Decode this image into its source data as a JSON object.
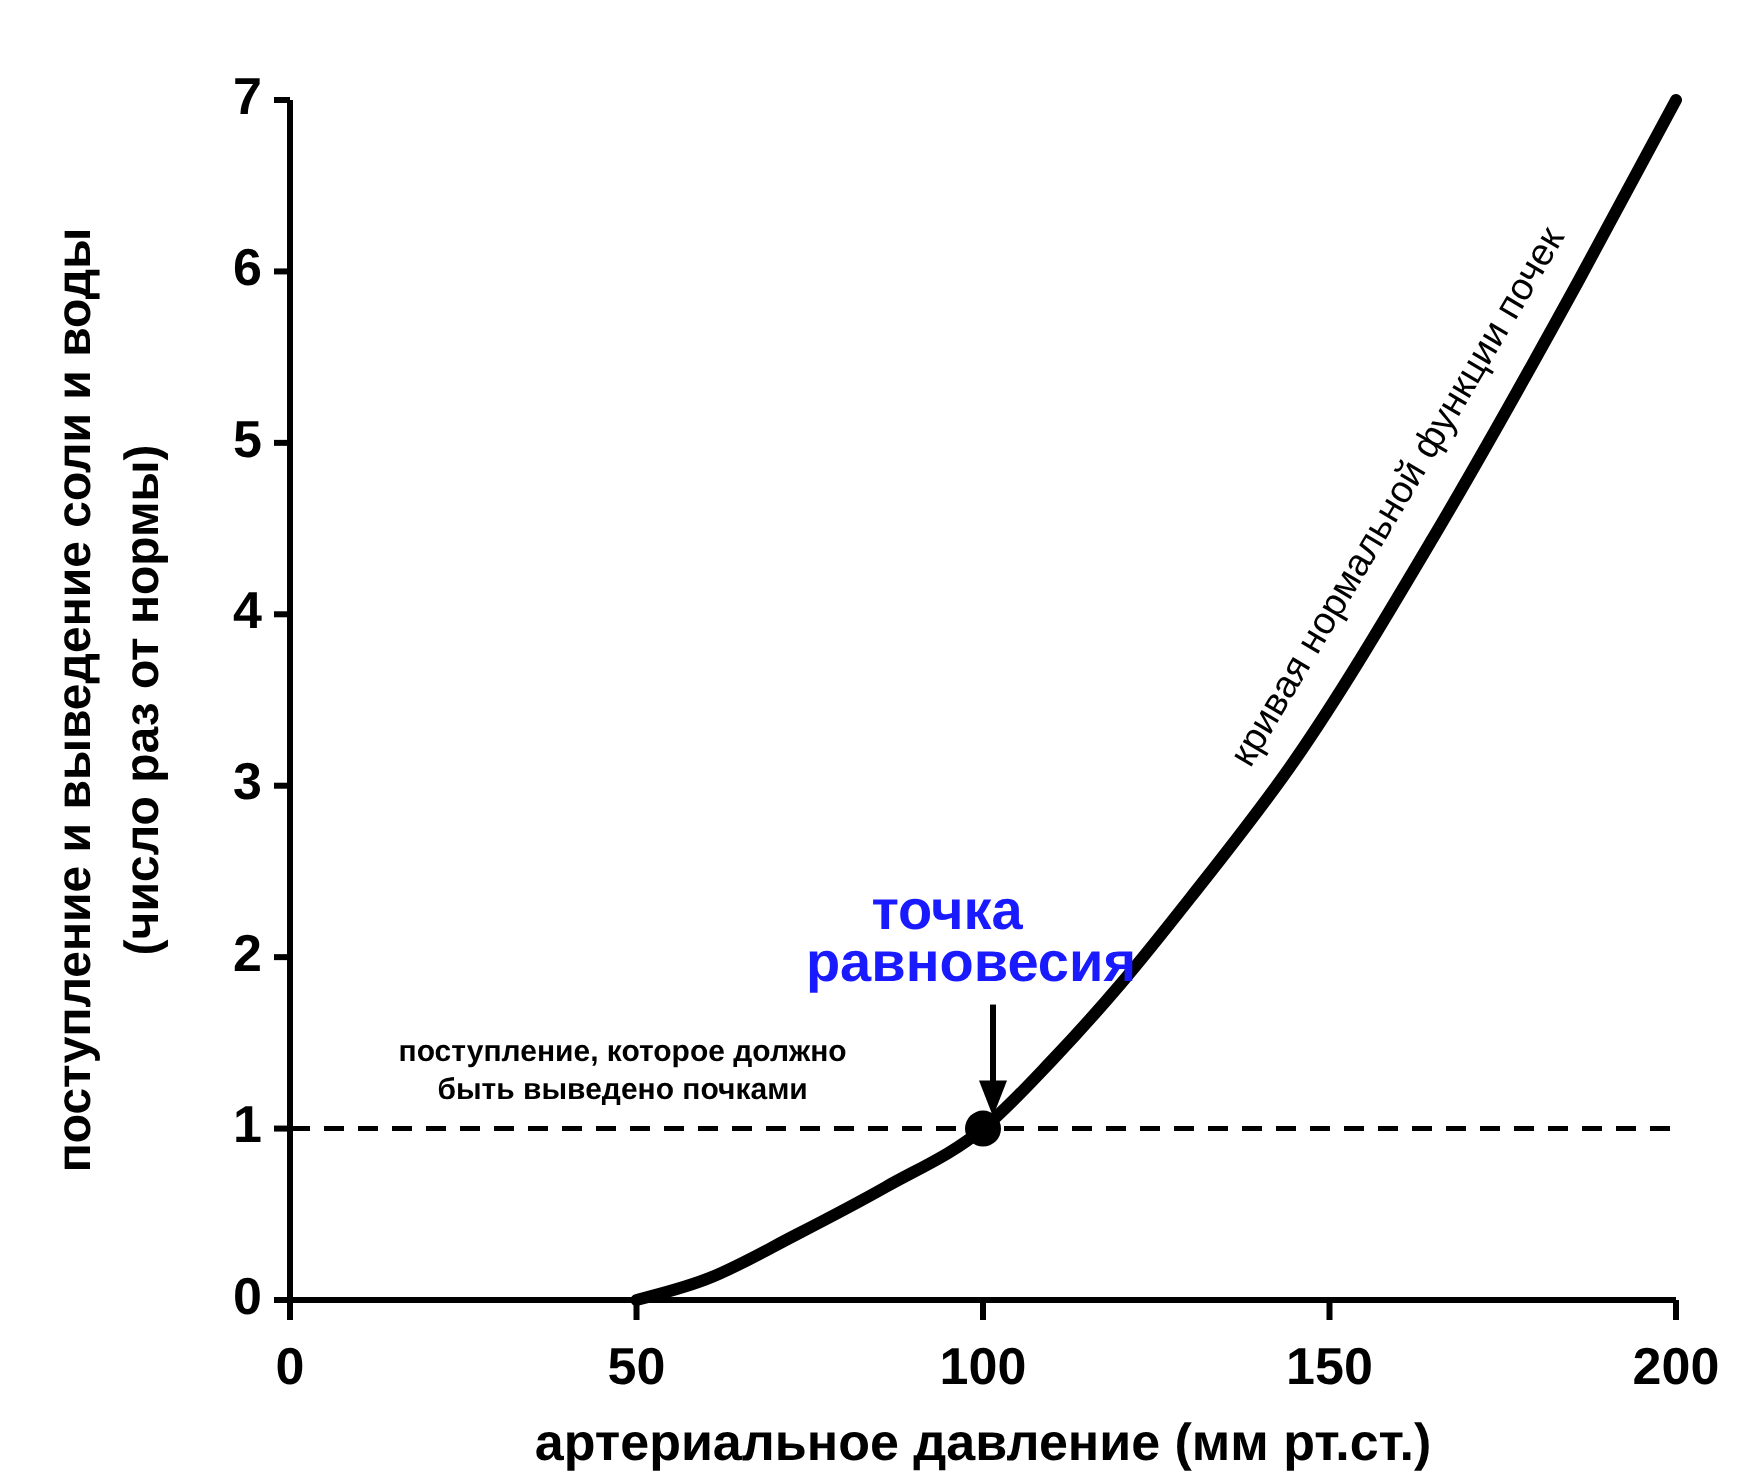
{
  "chart_data": {
    "type": "line",
    "xlabel": "артериальное давление (мм рт.ст.)",
    "ylabel": "поступление и выведение соли и воды\n(число раз от нормы)",
    "xlim": [
      0,
      200
    ],
    "xticks": [
      0,
      50,
      100,
      150,
      200
    ],
    "ylim": [
      0,
      7
    ],
    "yticks": [
      0,
      1,
      2,
      3,
      4,
      5,
      6,
      7
    ],
    "grid": false,
    "series": [
      {
        "name": "кривая нормальной функции почек",
        "color": "#000000",
        "x": [
          50,
          60,
          73,
          86,
          100,
          110,
          120,
          130,
          145,
          165,
          186,
          200
        ],
        "values": [
          0,
          0.12,
          0.38,
          0.66,
          1,
          1.4,
          1.85,
          2.35,
          3.15,
          4.45,
          5.95,
          7
        ]
      },
      {
        "type": "scatter",
        "color": "#000000",
        "marker": "circle",
        "x": [
          100
        ],
        "values": [
          1
        ]
      }
    ],
    "ref_lines": [
      {
        "axis": "y",
        "value": 1,
        "label": "поступление, которое должно\nбыть выведено почками",
        "line_style": "dashed"
      }
    ],
    "annotations": [
      {
        "text": "точка\nравновесия",
        "x": 100,
        "y": 1
      }
    ]
  }
}
